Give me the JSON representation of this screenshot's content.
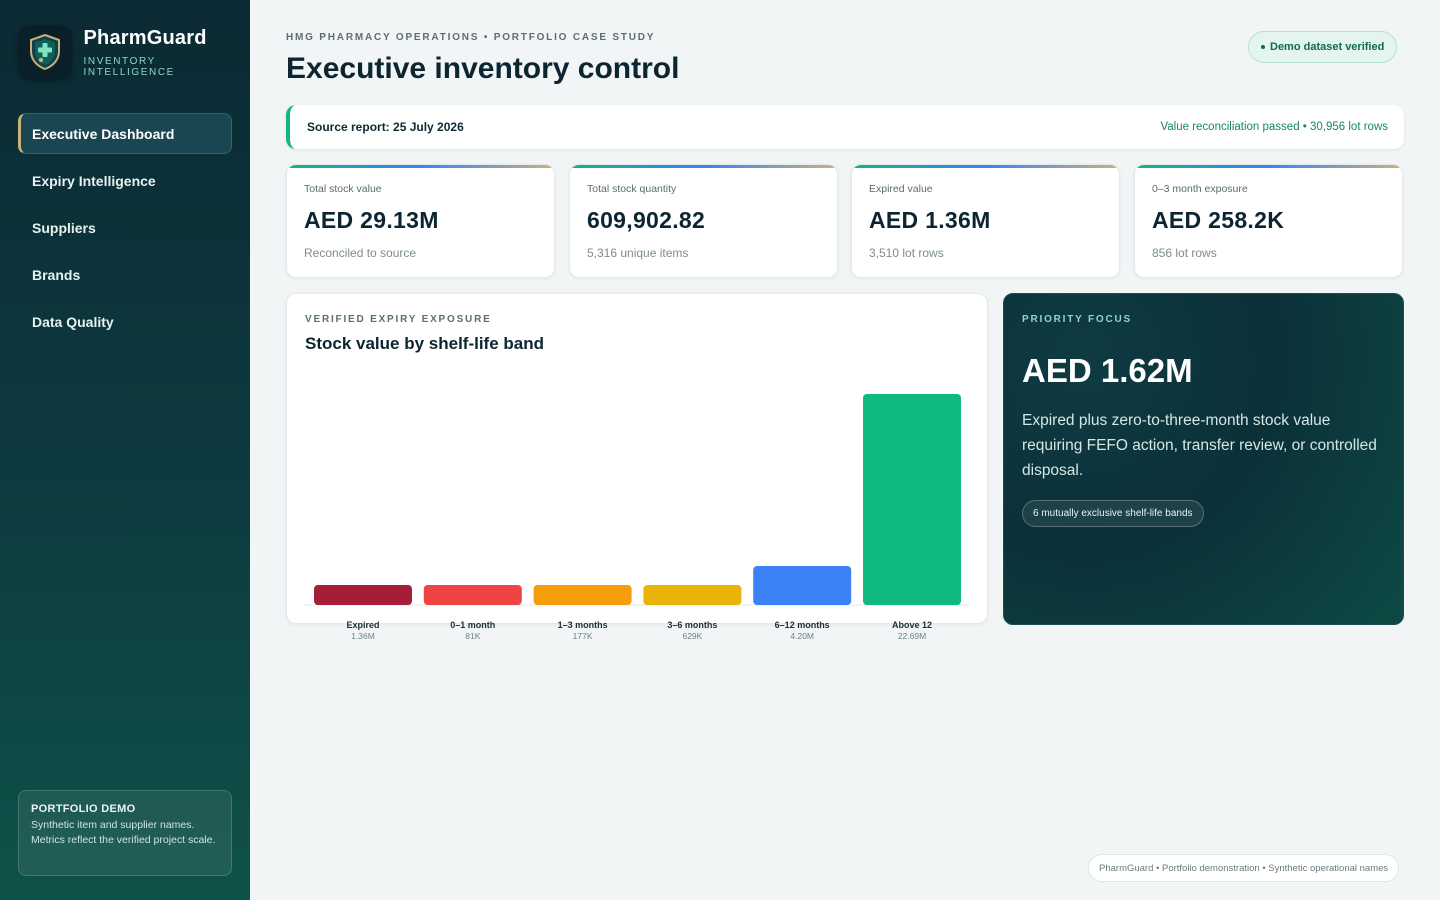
{
  "sidebar": {
    "brand_name": "PharmGuard",
    "brand_sub": "INVENTORY INTELLIGENCE",
    "logo_icon": "shield-cross-icon",
    "nav": [
      {
        "label": "Executive Dashboard",
        "active": true
      },
      {
        "label": "Expiry Intelligence",
        "active": false
      },
      {
        "label": "Suppliers",
        "active": false
      },
      {
        "label": "Brands",
        "active": false
      },
      {
        "label": "Data Quality",
        "active": false
      }
    ],
    "demo": {
      "title": "PORTFOLIO DEMO",
      "text": "Synthetic item and supplier names. Metrics reflect the verified project scale."
    }
  },
  "header": {
    "eyebrow": "HMG PHARMACY OPERATIONS • PORTFOLIO CASE STUDY",
    "title": "Executive inventory control",
    "verified_badge": "Demo dataset verified"
  },
  "source_bar": {
    "source": "Source report: 25 July 2026",
    "reconciliation": "Value reconciliation passed • 30,956 lot rows"
  },
  "kpis": [
    {
      "label": "Total stock value",
      "value": "AED 29.13M",
      "note": "Reconciled to source"
    },
    {
      "label": "Total stock quantity",
      "value": "609,902.82",
      "note": "5,316 unique items"
    },
    {
      "label": "Expired value",
      "value": "AED 1.36M",
      "note": "3,510 lot rows"
    },
    {
      "label": "0–3 month exposure",
      "value": "AED 258.2K",
      "note": "856 lot rows"
    }
  ],
  "chart_card": {
    "eyebrow": "VERIFIED EXPIRY EXPOSURE",
    "title": "Stock value by shelf-life band"
  },
  "chart_data": {
    "type": "bar",
    "categories": [
      "Expired",
      "0–1 month",
      "1–3 months",
      "3–6 months",
      "6–12 months",
      "Above 12"
    ],
    "values": [
      1.36,
      0.081,
      0.177,
      0.629,
      4.2,
      22.69
    ],
    "value_labels": [
      "1.36M",
      "81K",
      "177K",
      "629K",
      "4.20M",
      "22.69M"
    ],
    "colors": [
      "#a51d36",
      "#ef4444",
      "#f59e0b",
      "#eab308",
      "#3b82f6",
      "#10b981"
    ],
    "title": "Stock value by shelf-life band",
    "xlabel": "",
    "ylabel": "",
    "grid": false
  },
  "focus": {
    "eyebrow": "PRIORITY FOCUS",
    "value": "AED 1.62M",
    "text": "Expired plus zero-to-three-month stock value requiring FEFO action, transfer review, or controlled disposal.",
    "pill": "6 mutually exclusive shelf-life bands"
  },
  "footer": "PharmGuard • Portfolio demonstration • Synthetic operational names"
}
